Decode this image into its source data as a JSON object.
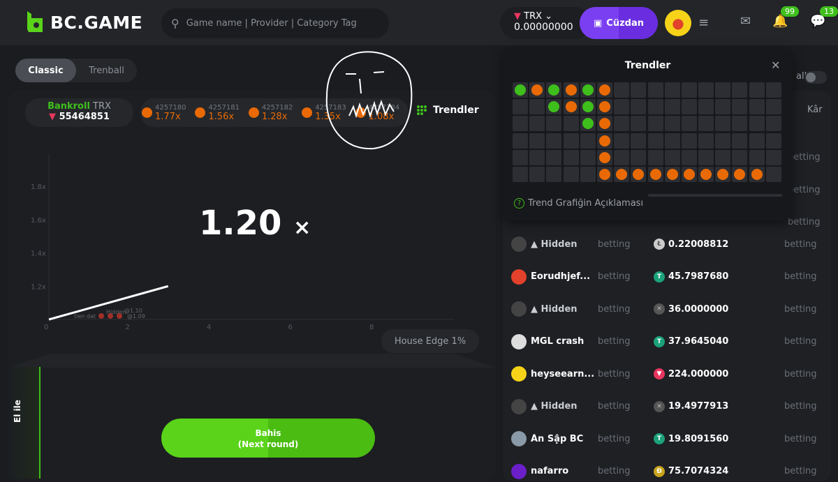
{
  "header": {
    "logo": "BC.GAME",
    "search_placeholder": "Game name | Provider | Category Tag",
    "currency": "TRX",
    "balance": "0.00000000",
    "wallet_label": "Cüzdan",
    "notifications_count": "99",
    "chat_count": "13"
  },
  "mode_tabs": [
    {
      "label": "Classic",
      "active": true
    },
    {
      "label": "Trenball",
      "active": false
    }
  ],
  "bankroll": {
    "label": "Bankroll",
    "currency": "TRX",
    "value": "55464851"
  },
  "history": [
    {
      "id": "4257180",
      "value": "1.77x"
    },
    {
      "id": "4257181",
      "value": "1.56x"
    },
    {
      "id": "4257182",
      "value": "1.28x"
    },
    {
      "id": "4257183",
      "value": "1.35x"
    },
    {
      "id": "4257184",
      "value": "1.08x"
    }
  ],
  "trends_button": "Trendler",
  "multiplier": "1.20",
  "multiplier_suffix": "×",
  "house_edge": "House Edge 1%",
  "manual_tab": "El ile",
  "bet_button": {
    "line1": "Bahis",
    "line2": "(Next round)"
  },
  "chart": {
    "y_ticks": [
      "1.8x",
      "1.6x",
      "1.4x",
      "1.2x"
    ],
    "x_ticks": [
      "0",
      "2",
      "4",
      "6",
      "8"
    ],
    "curve_end": {
      "x": 3,
      "y": 1.2
    },
    "labels": [
      "tien dat",
      "Hidden",
      "@1.10",
      "@1.09"
    ]
  },
  "right_panel": {
    "toggle_label": "all",
    "col_profit": "Kâr",
    "hidden_rows_status": [
      "betting",
      "betting",
      "betting"
    ]
  },
  "players": [
    {
      "name": "Hidden",
      "hidden": true,
      "status": "betting",
      "coin": "LTC",
      "amount": "0.22008812",
      "profit": "betting",
      "avatar": "#444"
    },
    {
      "name": "Eorudhjef...",
      "hidden": false,
      "status": "betting",
      "coin": "USDT",
      "amount": "45.7987680",
      "profit": "betting",
      "avatar": "#e2412b"
    },
    {
      "name": "Hidden",
      "hidden": true,
      "status": "betting",
      "coin": "X",
      "amount": "36.0000000",
      "profit": "betting",
      "avatar": "#444"
    },
    {
      "name": "MGL crash",
      "hidden": false,
      "status": "betting",
      "coin": "USDT",
      "amount": "37.9645040",
      "profit": "betting",
      "avatar": "#ddd"
    },
    {
      "name": "heyseearn...",
      "hidden": false,
      "status": "betting",
      "coin": "TRX",
      "amount": "224.000000",
      "profit": "betting",
      "avatar": "#f6d318"
    },
    {
      "name": "Hidden",
      "hidden": true,
      "status": "betting",
      "coin": "X",
      "amount": "19.4977913",
      "profit": "betting",
      "avatar": "#444"
    },
    {
      "name": "Ăn Sập BC",
      "hidden": false,
      "status": "betting",
      "coin": "USDT",
      "amount": "19.8091560",
      "profit": "betting",
      "avatar": "#8a9aa8"
    },
    {
      "name": "nafarro",
      "hidden": false,
      "status": "betting",
      "coin": "DOGE",
      "amount": "75.7074324",
      "profit": "betting",
      "avatar": "#6a1fc9"
    }
  ],
  "trends_popup": {
    "title": "Trendler",
    "help": "Trend Grafiğin Açıklaması",
    "grid": [
      "GOGOGO..........",
      "..GOGO..........",
      "....GO..........",
      ".....O..........",
      ".....O..........",
      ".....OOOOOOOOOO."
    ]
  },
  "colors": {
    "accent": "#3fbf1c",
    "orange": "#e96a05",
    "wallet": "#7b3ff2",
    "bg": "#1a1c1f"
  }
}
